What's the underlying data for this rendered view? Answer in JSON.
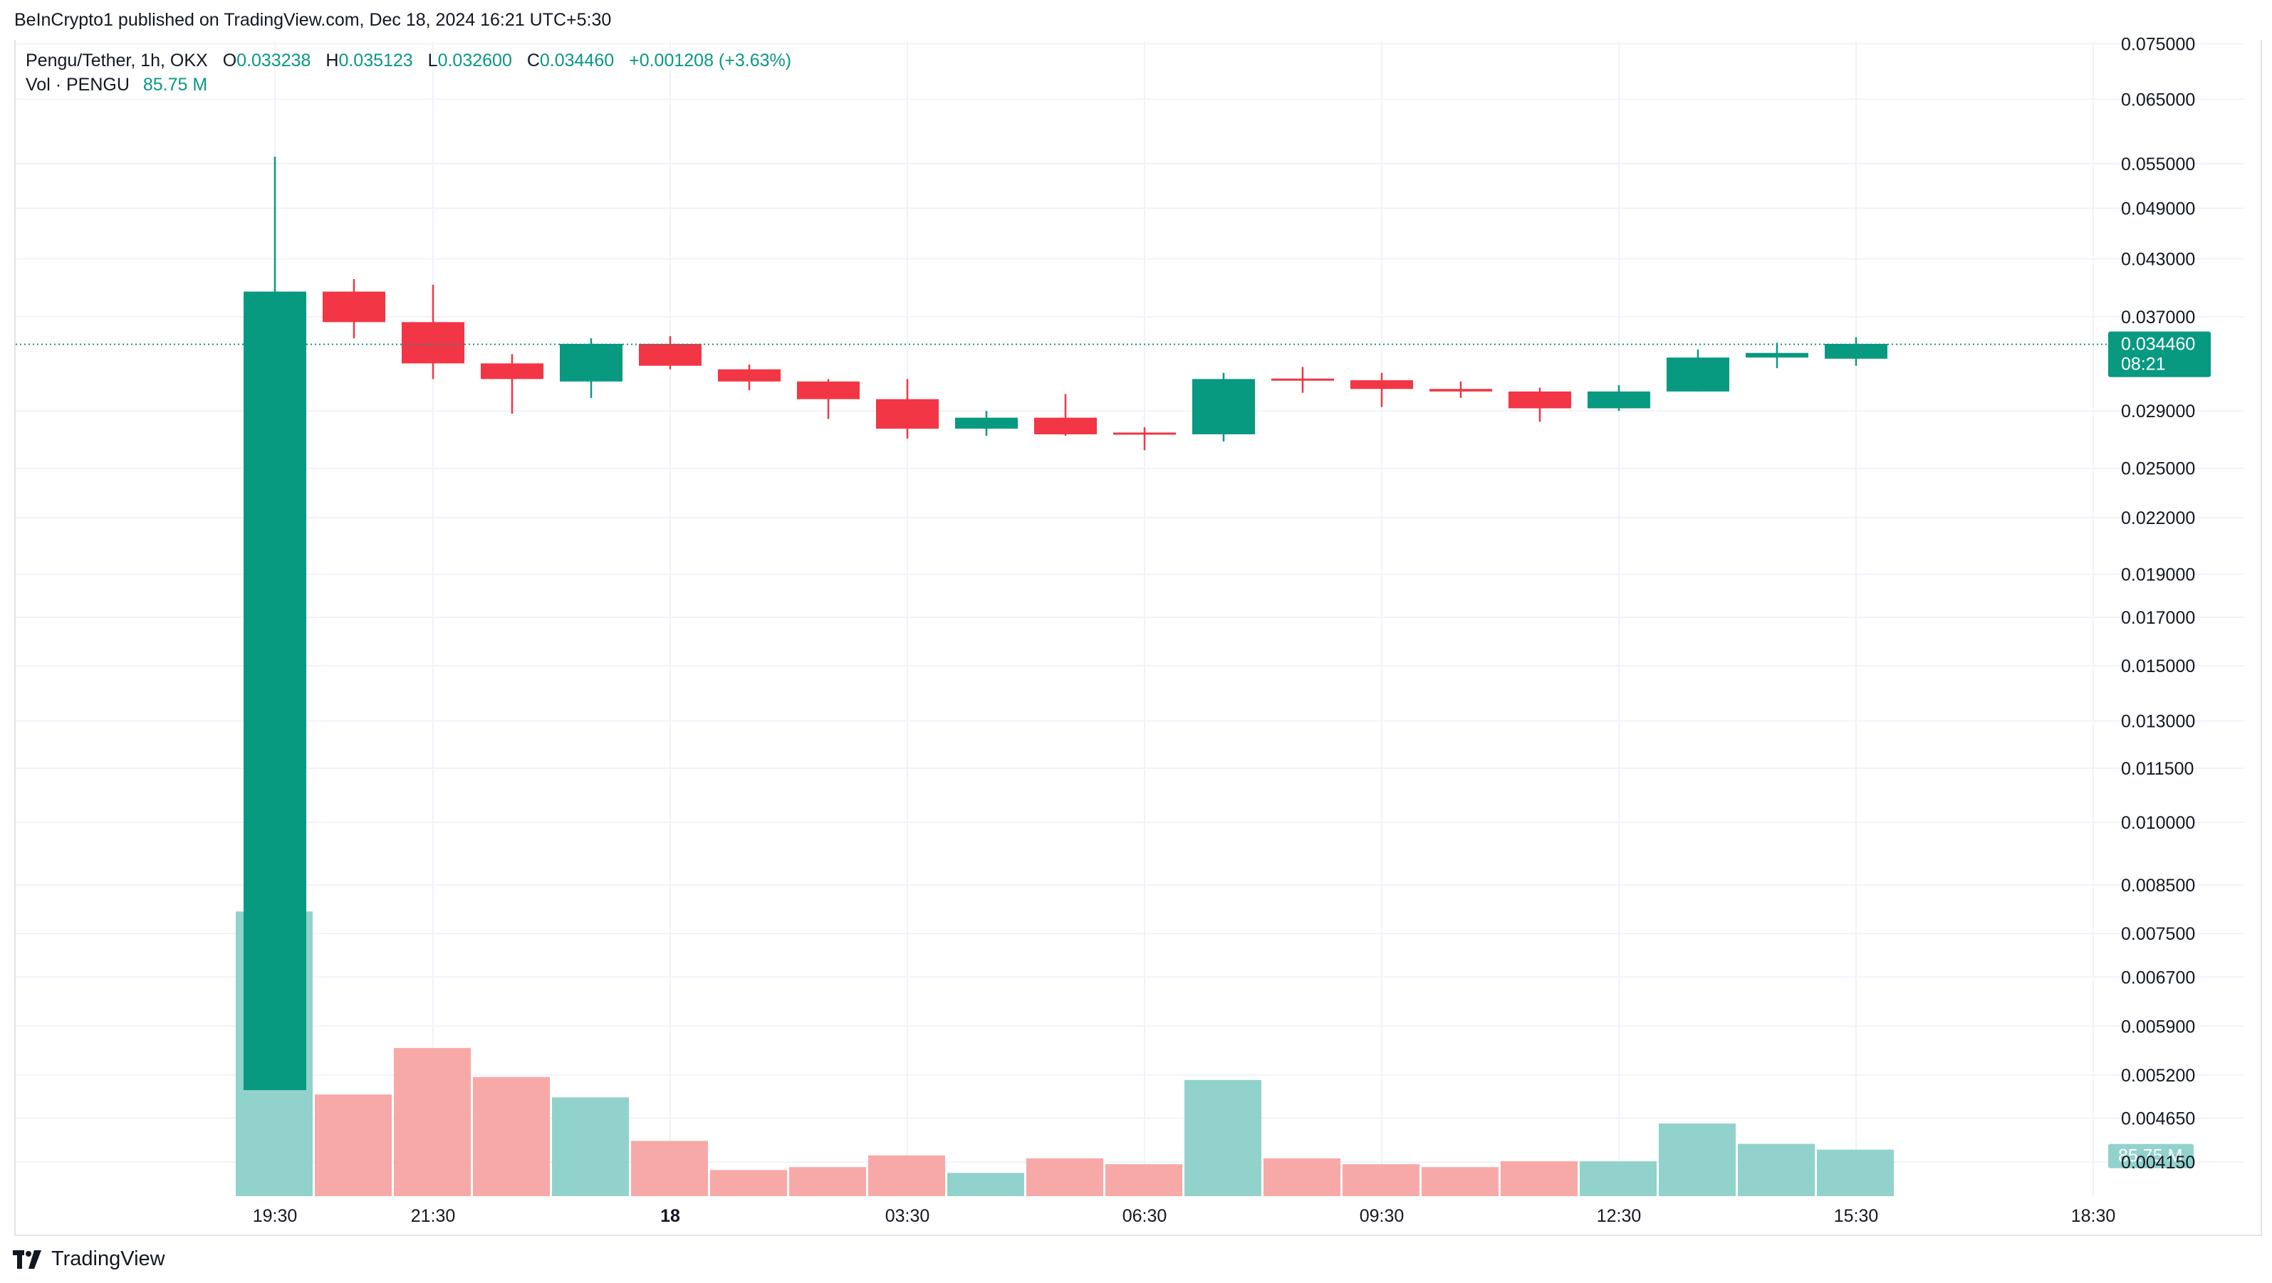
{
  "publisher_line": "BeInCrypto1 published on TradingView.com, Dec 18, 2024 16:21 UTC+5:30",
  "brand": "TradingView",
  "legend": {
    "symbol": "Pengu/Tether, 1h, OKX",
    "open_label": "O",
    "open": "0.033238",
    "high_label": "H",
    "high": "0.035123",
    "low_label": "L",
    "low": "0.032600",
    "close_label": "C",
    "close": "0.034460",
    "change": "+0.001208 (+3.63%)",
    "vol_label": "Vol · PENGU",
    "vol_value": "85.75 M"
  },
  "colors": {
    "up": "#089981",
    "down": "#f23645",
    "up_volume": "#92d2cc",
    "down_volume": "#f7a9a7",
    "grid": "#f0f3fa",
    "axis_text": "#131722"
  },
  "chart_data": {
    "type": "candlestick",
    "title": "Pengu/Tether, 1h, OKX",
    "y_scale": "log",
    "ylim": [
      0.0038,
      0.0755
    ],
    "y_ticks": [
      {
        "value": 0.075,
        "label": "0.075000"
      },
      {
        "value": 0.065,
        "label": "0.065000"
      },
      {
        "value": 0.055,
        "label": "0.055000"
      },
      {
        "value": 0.049,
        "label": "0.049000"
      },
      {
        "value": 0.043,
        "label": "0.043000"
      },
      {
        "value": 0.037,
        "label": "0.037000"
      },
      {
        "value": 0.029,
        "label": "0.029000"
      },
      {
        "value": 0.025,
        "label": "0.025000"
      },
      {
        "value": 0.022,
        "label": "0.022000"
      },
      {
        "value": 0.019,
        "label": "0.019000"
      },
      {
        "value": 0.017,
        "label": "0.017000"
      },
      {
        "value": 0.015,
        "label": "0.015000"
      },
      {
        "value": 0.013,
        "label": "0.013000"
      },
      {
        "value": 0.0115,
        "label": "0.011500"
      },
      {
        "value": 0.01,
        "label": "0.010000"
      },
      {
        "value": 0.0085,
        "label": "0.008500"
      },
      {
        "value": 0.0075,
        "label": "0.007500"
      },
      {
        "value": 0.0067,
        "label": "0.006700"
      },
      {
        "value": 0.0059,
        "label": "0.005900"
      },
      {
        "value": 0.0052,
        "label": "0.005200"
      },
      {
        "value": 0.00465,
        "label": "0.004650"
      },
      {
        "value": 0.00415,
        "label": "0.004150"
      }
    ],
    "x_ticks": [
      {
        "index": 0,
        "label": "19:30",
        "bold": false
      },
      {
        "index": 2,
        "label": "21:30",
        "bold": false
      },
      {
        "index": 5,
        "label": "18",
        "bold": true
      },
      {
        "index": 8,
        "label": "03:30",
        "bold": false
      },
      {
        "index": 11,
        "label": "06:30",
        "bold": false
      },
      {
        "index": 14,
        "label": "09:30",
        "bold": false
      },
      {
        "index": 17,
        "label": "12:30",
        "bold": false
      },
      {
        "index": 20,
        "label": "15:30",
        "bold": false
      },
      {
        "index": 23,
        "label": "18:30",
        "bold": false
      }
    ],
    "x_slots": 25,
    "candles": [
      {
        "time": "19:30",
        "open": 0.005,
        "high": 0.056,
        "low": 0.005,
        "close": 0.0395,
        "volume": 0.98
      },
      {
        "time": "20:30",
        "open": 0.0395,
        "high": 0.0408,
        "low": 0.035,
        "close": 0.0365,
        "volume": 0.35
      },
      {
        "time": "21:30",
        "open": 0.0365,
        "high": 0.0402,
        "low": 0.0315,
        "close": 0.0328,
        "volume": 0.51
      },
      {
        "time": "22:30",
        "open": 0.0328,
        "high": 0.0336,
        "low": 0.0288,
        "close": 0.0315,
        "volume": 0.41
      },
      {
        "time": "23:30",
        "open": 0.0313,
        "high": 0.035,
        "low": 0.03,
        "close": 0.0345,
        "volume": 0.34
      },
      {
        "time": "00:30",
        "open": 0.0345,
        "high": 0.0352,
        "low": 0.0323,
        "close": 0.0326,
        "volume": 0.19
      },
      {
        "time": "01:30",
        "open": 0.0323,
        "high": 0.0327,
        "low": 0.0306,
        "close": 0.0313,
        "volume": 0.09
      },
      {
        "time": "02:30",
        "open": 0.0313,
        "high": 0.0315,
        "low": 0.0284,
        "close": 0.0299,
        "volume": 0.1
      },
      {
        "time": "03:30",
        "open": 0.0299,
        "high": 0.0315,
        "low": 0.027,
        "close": 0.0277,
        "volume": 0.14
      },
      {
        "time": "04:30",
        "open": 0.0277,
        "high": 0.029,
        "low": 0.0272,
        "close": 0.0285,
        "volume": 0.08
      },
      {
        "time": "05:30",
        "open": 0.0285,
        "high": 0.0303,
        "low": 0.0272,
        "close": 0.0273,
        "volume": 0.13
      },
      {
        "time": "06:30",
        "open": 0.0274,
        "high": 0.0278,
        "low": 0.0262,
        "close": 0.0273,
        "volume": 0.11
      },
      {
        "time": "07:30",
        "open": 0.0273,
        "high": 0.032,
        "low": 0.0268,
        "close": 0.0315,
        "volume": 0.4
      },
      {
        "time": "08:30",
        "open": 0.0315,
        "high": 0.0325,
        "low": 0.0304,
        "close": 0.0314,
        "volume": 0.13
      },
      {
        "time": "09:30",
        "open": 0.0314,
        "high": 0.032,
        "low": 0.0293,
        "close": 0.0307,
        "volume": 0.11
      },
      {
        "time": "10:30",
        "open": 0.0307,
        "high": 0.0313,
        "low": 0.03,
        "close": 0.0305,
        "volume": 0.1
      },
      {
        "time": "11:30",
        "open": 0.0305,
        "high": 0.0308,
        "low": 0.0282,
        "close": 0.0292,
        "volume": 0.12
      },
      {
        "time": "12:30",
        "open": 0.0292,
        "high": 0.031,
        "low": 0.029,
        "close": 0.0305,
        "volume": 0.12
      },
      {
        "time": "13:30",
        "open": 0.0305,
        "high": 0.034,
        "low": 0.0305,
        "close": 0.0333,
        "volume": 0.25
      },
      {
        "time": "14:30",
        "open": 0.0333,
        "high": 0.0346,
        "low": 0.0324,
        "close": 0.0337,
        "volume": 0.18
      },
      {
        "time": "15:30",
        "open": 0.0332,
        "high": 0.0351,
        "low": 0.0326,
        "close": 0.0345,
        "volume": 0.16
      }
    ],
    "current_price": {
      "value": 0.03446,
      "label": "0.034460",
      "countdown": "08:21"
    },
    "volume_axis_label": "85.75 M"
  }
}
